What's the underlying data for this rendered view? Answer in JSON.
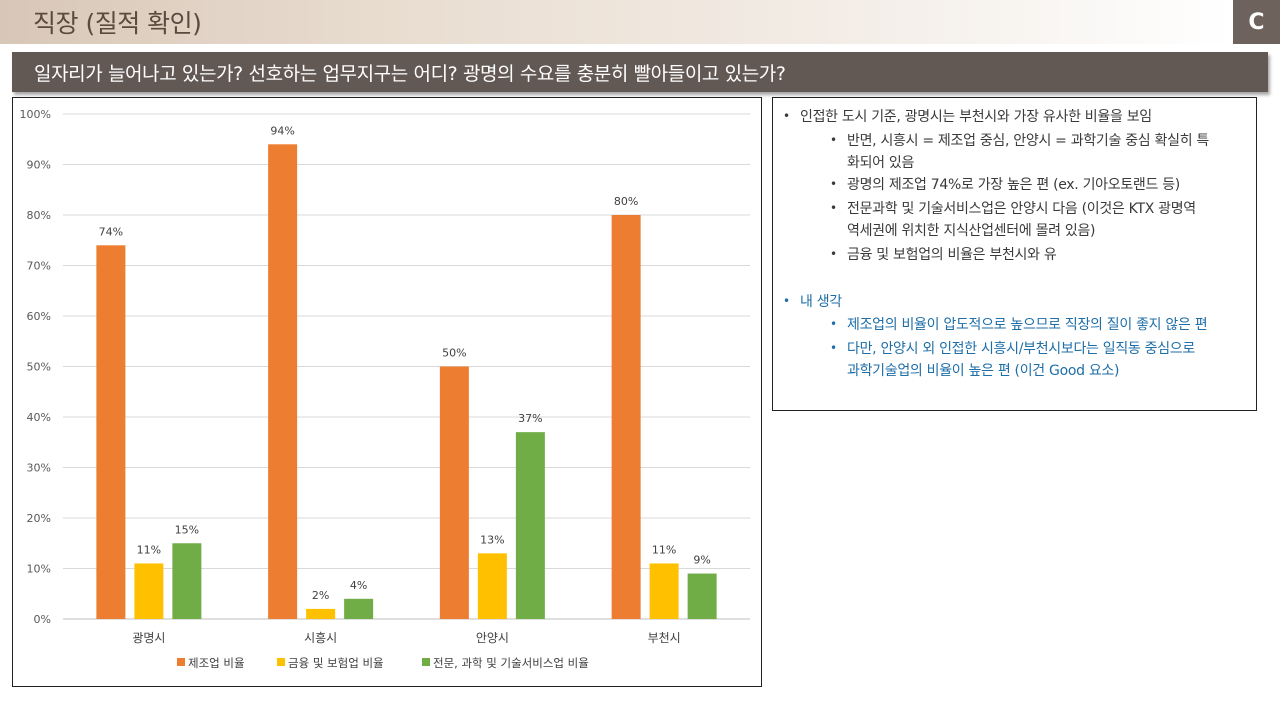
{
  "header": {
    "title": "직장 (질적 확인)",
    "logo_letter": "C"
  },
  "question": "일자리가 늘어나고 있는가? 선호하는 업무지구는 어디? 광명의 수요를 충분히 빨아들이고 있는가?",
  "notes": {
    "bullets": [
      {
        "text": "인접한 도시 기준, 광명시는 부천시와 가장 유사한 비율을 보임",
        "subs": [
          [
            "반면, 시흥시 = 제조업 중심, 안양시 = 과학기술 중심 확실히 특",
            "화되어 있음"
          ],
          [
            "광명의 제조업 74%로 가장 높은 편 (ex. 기아오토랜드 등)"
          ],
          [
            "전문과학 및 기술서비스업은 안양시 다음 (이것은 KTX 광명역",
            "역세권에 위치한 지식산업센터에 몰려 있음)"
          ],
          [
            "금융 및 보험업의 비율은 부천시와 유"
          ]
        ]
      },
      {
        "text": "내 생각",
        "subs": [
          [
            "제조업의 비율이 압도적으로 높으므로 직장의 질이 좋지 않은 편"
          ],
          [
            "다만, 안양시 외 인접한 시흥시/부천시보다는 일직동 중심으로",
            "과학기술업의 비율이 높은 편 (이건 Good 요소)"
          ]
        ]
      }
    ],
    "bullet_char": "•",
    "accent_color": "#1e6ea8"
  },
  "chart_data": {
    "type": "bar",
    "categories": [
      "광명시",
      "시흥시",
      "안양시",
      "부천시"
    ],
    "series": [
      {
        "name": "제조업 비율",
        "color": "#ed7d31",
        "values": [
          74,
          94,
          50,
          80
        ],
        "labels": [
          "74%",
          "94%",
          "50%",
          "80%"
        ]
      },
      {
        "name": "금융 및 보험업 비율",
        "color": "#ffc000",
        "values": [
          11,
          2,
          13,
          11
        ],
        "labels": [
          "11%",
          "2%",
          "13%",
          "11%"
        ]
      },
      {
        "name": "전문, 과학 및 기술서비스업 비율",
        "color": "#70ad47",
        "values": [
          15,
          4,
          37,
          9
        ],
        "labels": [
          "15%",
          "4%",
          "37%",
          "9%"
        ]
      }
    ],
    "yticks": [
      "0%",
      "10%",
      "20%",
      "30%",
      "40%",
      "50%",
      "60%",
      "70%",
      "80%",
      "90%",
      "100%"
    ],
    "ylim": [
      0,
      100
    ],
    "title": "",
    "xlabel": "",
    "ylabel": "",
    "grid": true,
    "legend": "bottom"
  }
}
